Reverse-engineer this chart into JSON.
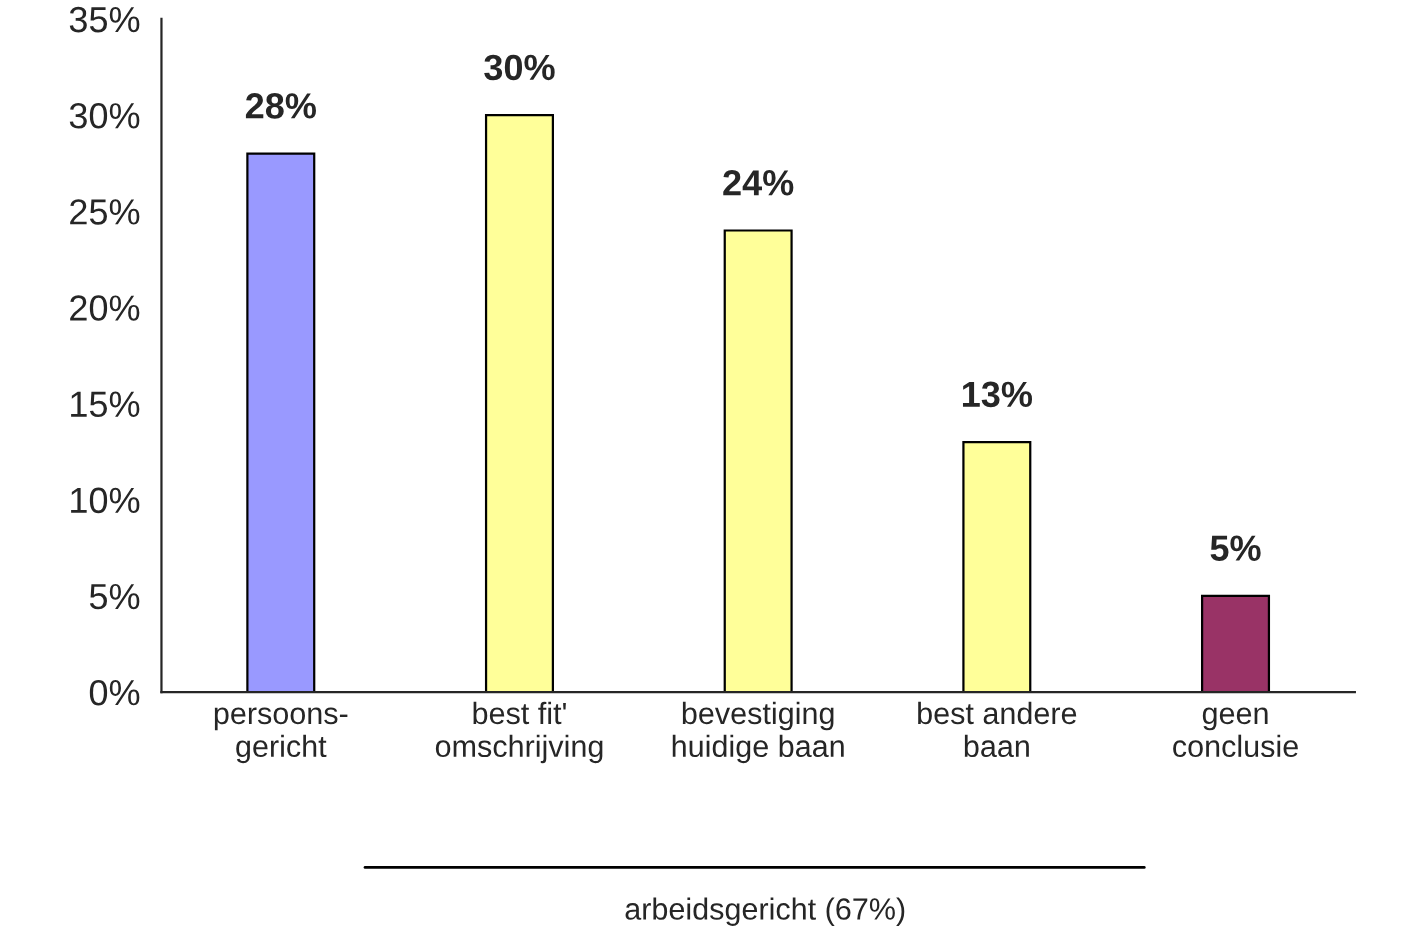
{
  "chart_data": {
    "type": "bar",
    "categories": [
      "persoons-\ngericht",
      "best fit'\nomschrijving",
      "bevestiging\nhuidige baan",
      "best andere\nbaan",
      "geen\nconclusie"
    ],
    "values": [
      28,
      30,
      24,
      13,
      5
    ],
    "colors": [
      "#9999ff",
      "#ffff99",
      "#ffff99",
      "#ffff99",
      "#993366"
    ],
    "value_labels": [
      "28%",
      "30%",
      "24%",
      "13%",
      "5%"
    ],
    "ylim": [
      0,
      35
    ],
    "yticks": [
      {
        "value": 0,
        "label": "0%"
      },
      {
        "value": 5,
        "label": "5%"
      },
      {
        "value": 10,
        "label": "10%"
      },
      {
        "value": 15,
        "label": "15%"
      },
      {
        "value": 20,
        "label": "20%"
      },
      {
        "value": 25,
        "label": "25%"
      },
      {
        "value": 30,
        "label": "30%"
      },
      {
        "value": 35,
        "label": "35%"
      }
    ],
    "grid": false,
    "annotations": [
      "arbeidsgericht (67%)"
    ]
  }
}
